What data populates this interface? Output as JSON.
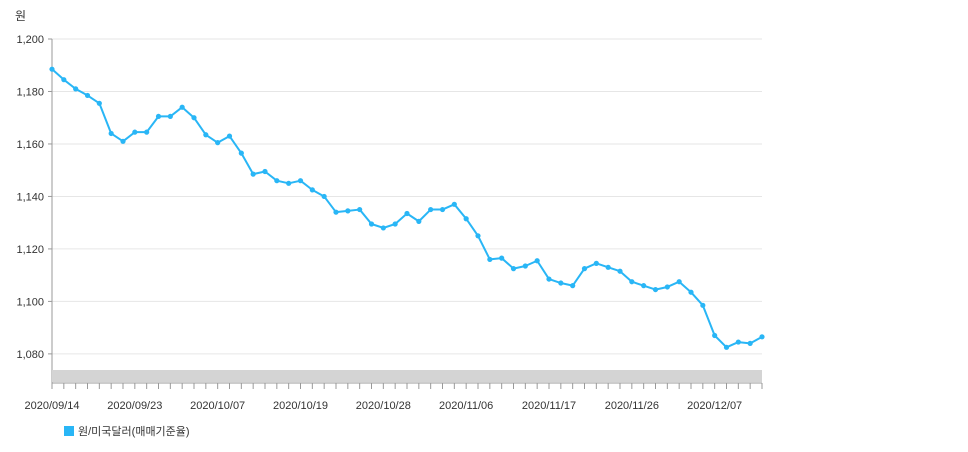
{
  "chart_data": {
    "type": "line",
    "y_unit": "원",
    "xlabel": "",
    "ylabel": "",
    "ylim": [
      1075,
      1200
    ],
    "y_ticks": [
      1080,
      1100,
      1120,
      1140,
      1160,
      1180,
      1200
    ],
    "y_tick_labels": [
      "1,080",
      "1,100",
      "1,120",
      "1,140",
      "1,160",
      "1,180",
      "1,200"
    ],
    "x_tick_labels": [
      {
        "index": 0,
        "label": "2020/09/14"
      },
      {
        "index": 7,
        "label": "2020/09/23"
      },
      {
        "index": 14,
        "label": "2020/10/07"
      },
      {
        "index": 21,
        "label": "2020/10/19"
      },
      {
        "index": 28,
        "label": "2020/10/28"
      },
      {
        "index": 35,
        "label": "2020/11/06"
      },
      {
        "index": 42,
        "label": "2020/11/17"
      },
      {
        "index": 49,
        "label": "2020/11/26"
      },
      {
        "index": 56,
        "label": "2020/12/07"
      }
    ],
    "grid": true,
    "legend_position": "bottom-left",
    "series": [
      {
        "name": "원/미국달러(매매기준율)",
        "color": "#29b6f6",
        "values": [
          1188.5,
          1184.5,
          1181,
          1178.5,
          1175.5,
          1164,
          1161,
          1164.5,
          1164.5,
          1170.5,
          1170.5,
          1174,
          1170,
          1163.5,
          1160.5,
          1163,
          1156.5,
          1148.5,
          1149.5,
          1146,
          1145,
          1146,
          1142.5,
          1140,
          1134,
          1134.5,
          1135,
          1129.5,
          1128,
          1129.5,
          1133.5,
          1130.5,
          1135,
          1135,
          1137,
          1131.5,
          1125,
          1116,
          1116.5,
          1112.5,
          1113.5,
          1115.5,
          1108.5,
          1107,
          1106,
          1112.5,
          1114.5,
          1113,
          1111.5,
          1107.5,
          1106,
          1104.5,
          1105.5,
          1107.5,
          1103.5,
          1098.5,
          1087,
          1082.5,
          1084.5,
          1084,
          1086.5
        ]
      }
    ]
  }
}
